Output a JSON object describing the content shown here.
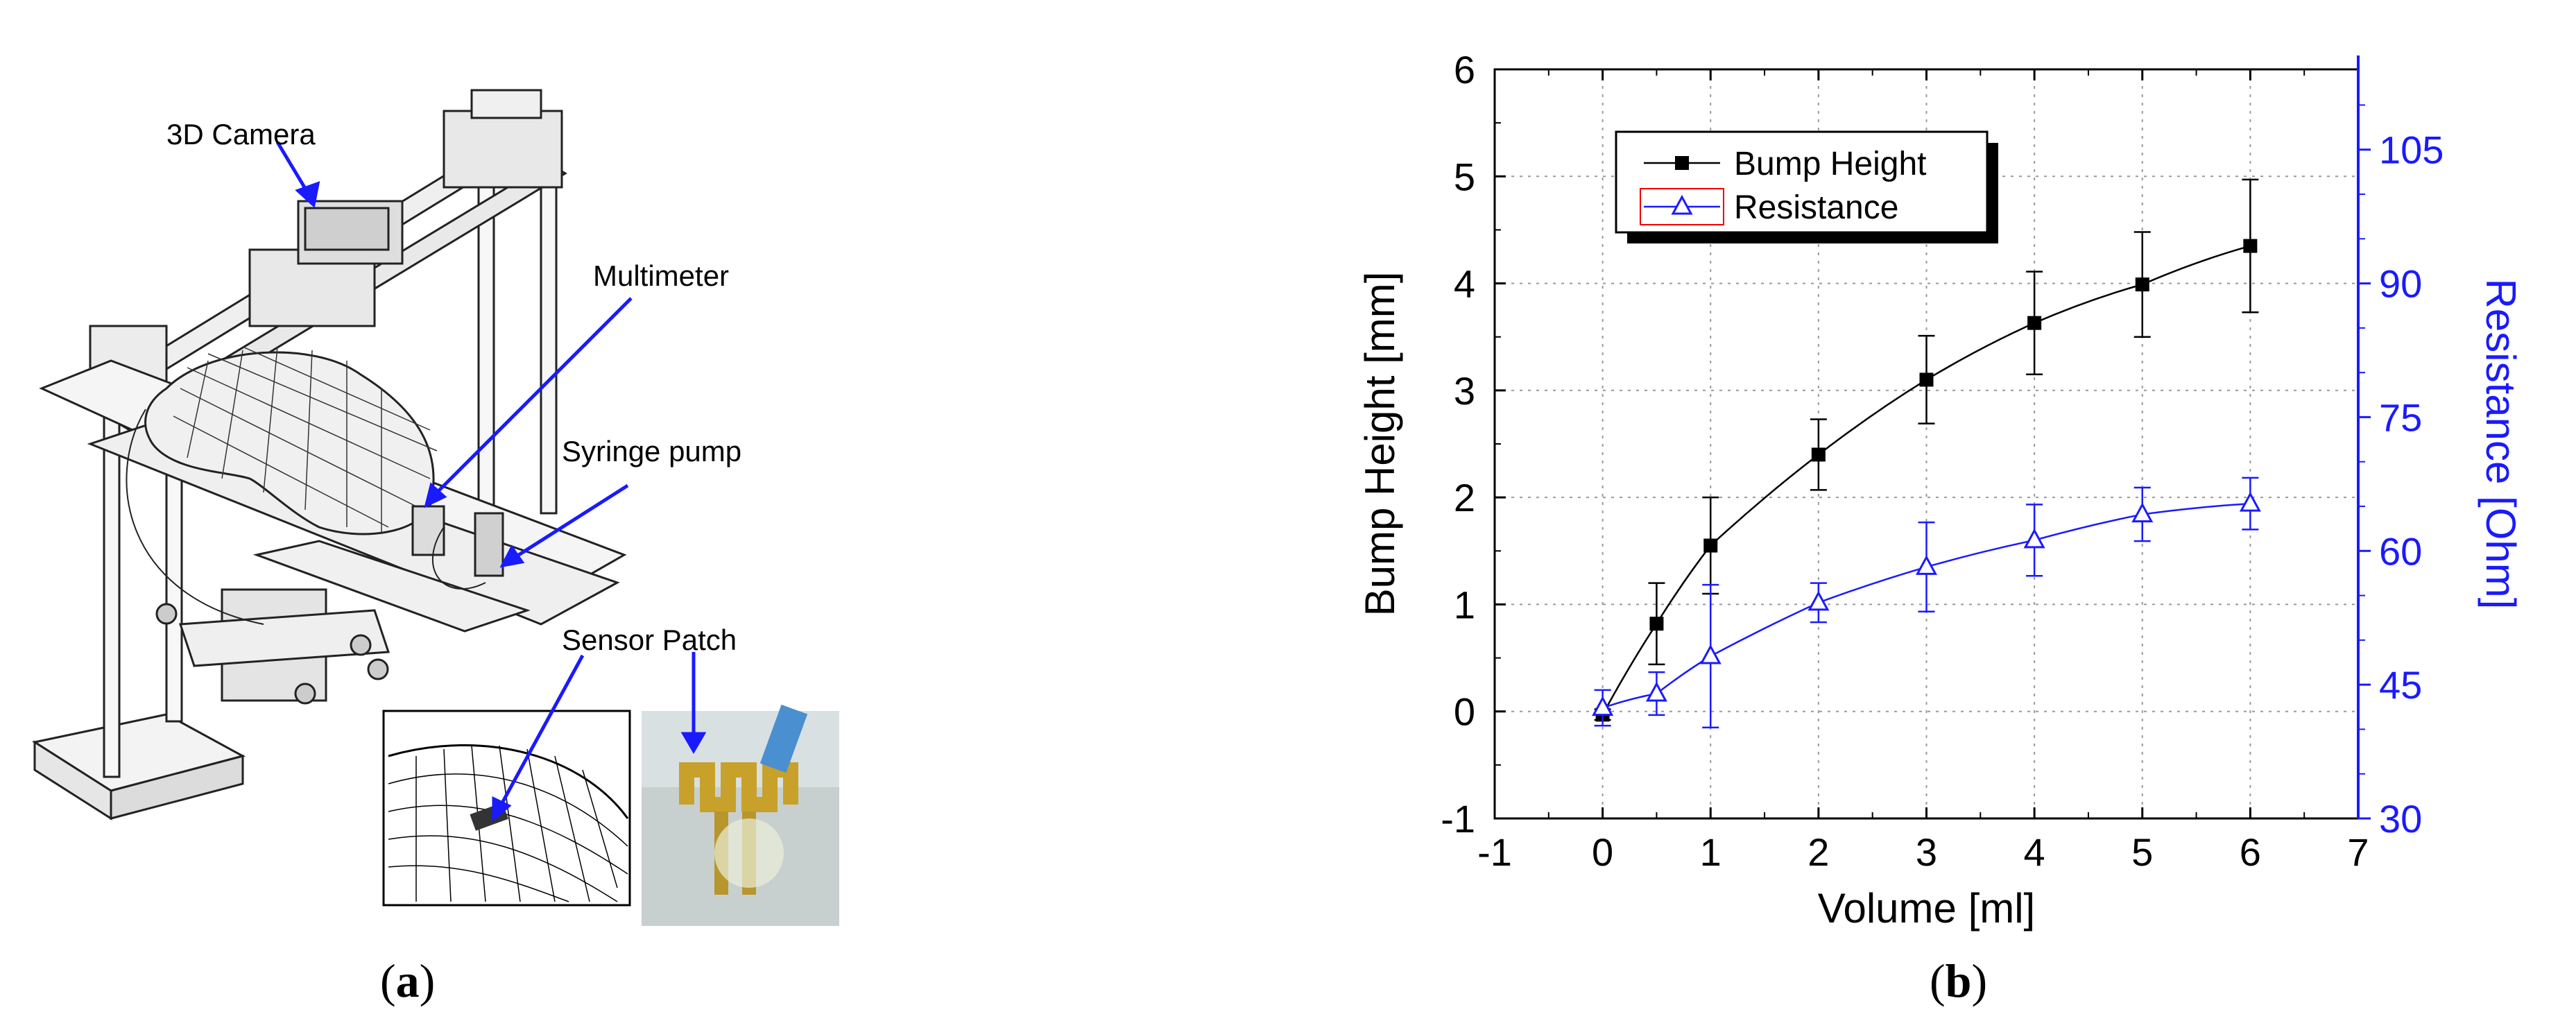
{
  "panel_a": {
    "callouts": {
      "camera": "3D Camera",
      "multimeter": "Multimeter",
      "syringe": "Syringe pump",
      "patch": "Sensor Patch"
    },
    "caption_letter": "a"
  },
  "panel_b": {
    "caption_letter": "b"
  },
  "colors": {
    "series1": "#000000",
    "series2": "#1a1aff",
    "arrow": "#1a1aff"
  },
  "chart_data": {
    "type": "line",
    "xlabel": "Volume [ml]",
    "ylabel": "Bump Height [mm]",
    "ylabel_right": "Resistance [Ohm]",
    "xlim": [
      -1,
      7
    ],
    "ylim": [
      -1,
      6
    ],
    "ylim_right": [
      30,
      114
    ],
    "x_ticks": [
      "-1",
      "0",
      "1",
      "2",
      "3",
      "4",
      "5",
      "6",
      "7"
    ],
    "y_ticks": [
      "-1",
      "0",
      "1",
      "2",
      "3",
      "4",
      "5",
      "6"
    ],
    "y_right_ticks": [
      "30",
      "45",
      "60",
      "75",
      "90",
      "105"
    ],
    "grid": true,
    "legend_position": "top-left",
    "series": [
      {
        "name": "Bump Height",
        "axis": "left",
        "marker": "filled-square",
        "x": [
          0,
          0.5,
          1,
          2,
          3,
          4,
          5,
          6
        ],
        "y": [
          -0.03,
          0.82,
          1.55,
          2.4,
          3.1,
          3.63,
          3.99,
          4.35
        ],
        "err": [
          0.05,
          0.38,
          0.45,
          0.33,
          0.41,
          0.48,
          0.49,
          0.62
        ]
      },
      {
        "name": "Resistance",
        "axis": "right",
        "marker": "open-triangle",
        "x": [
          0,
          0.5,
          1,
          2,
          3,
          4,
          5,
          6
        ],
        "y": [
          42.4,
          44.0,
          48.2,
          54.2,
          58.2,
          61.2,
          64.1,
          65.3
        ],
        "err": [
          2.0,
          2.4,
          8.0,
          2.2,
          5.0,
          4.0,
          3.0,
          2.9
        ]
      }
    ]
  }
}
